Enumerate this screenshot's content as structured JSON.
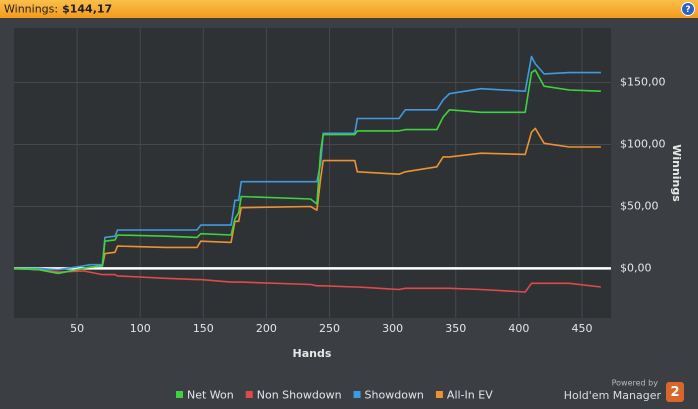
{
  "header": {
    "label": "Winnings:",
    "value": "$144,17",
    "help": "?"
  },
  "branding": {
    "powered_by": "Powered by",
    "product": "Hold'em Manager",
    "logo": "2"
  },
  "chart_data": {
    "type": "line",
    "x_label": "Hands",
    "y_label": "Winnings",
    "x": [
      0,
      20,
      35,
      55,
      60,
      70,
      72,
      80,
      82,
      120,
      145,
      148,
      172,
      175,
      178,
      180,
      235,
      240,
      243,
      245,
      270,
      272,
      305,
      310,
      335,
      340,
      345,
      370,
      405,
      410,
      413,
      420,
      440,
      465
    ],
    "series": [
      {
        "name": "Net Won",
        "color": "#3fd23f",
        "values": [
          0,
          -1,
          -4,
          0,
          1,
          2,
          22,
          23,
          27,
          26,
          25,
          28,
          27,
          40,
          45,
          58,
          56,
          52,
          95,
          108,
          108,
          111,
          111,
          112,
          112,
          122,
          128,
          126,
          126,
          158,
          160,
          147,
          144,
          143
        ]
      },
      {
        "name": "Non Showdown",
        "color": "#e04a4a",
        "values": [
          0,
          -1,
          -3,
          -2,
          -3,
          -5,
          -5,
          -5,
          -6,
          -8,
          -9,
          -9,
          -11,
          -11,
          -11,
          -11,
          -13,
          -14,
          -14,
          -14,
          -15,
          -15,
          -17,
          -16,
          -16,
          -16,
          -16,
          -17,
          -19,
          -12,
          -12,
          -12,
          -12,
          -15
        ]
      },
      {
        "name": "Showdown",
        "color": "#3f9be0",
        "values": [
          0,
          0,
          -1,
          2,
          3,
          3,
          25,
          26,
          31,
          31,
          31,
          35,
          35,
          55,
          55,
          70,
          70,
          70,
          85,
          109,
          109,
          121,
          121,
          128,
          128,
          136,
          141,
          145,
          143,
          171,
          165,
          157,
          158,
          158
        ]
      },
      {
        "name": "All-In EV",
        "color": "#ec9330",
        "values": [
          0,
          -1,
          -4,
          0,
          1,
          2,
          12,
          13,
          18,
          17,
          17,
          22,
          21,
          38,
          38,
          49,
          50,
          47,
          73,
          87,
          87,
          78,
          76,
          78,
          82,
          90,
          90,
          93,
          92,
          110,
          113,
          101,
          98,
          98
        ]
      }
    ],
    "xlim": [
      0,
      473
    ],
    "xticks": [
      50,
      100,
      150,
      200,
      250,
      300,
      350,
      400,
      450
    ],
    "ylim": [
      -40,
      194
    ],
    "yticks": [
      {
        "value": 0,
        "label": "$0,00"
      },
      {
        "value": 50,
        "label": "$50,00"
      },
      {
        "value": 100,
        "label": "$100,00"
      },
      {
        "value": 150,
        "label": "$150,00"
      }
    ],
    "grid": true
  }
}
